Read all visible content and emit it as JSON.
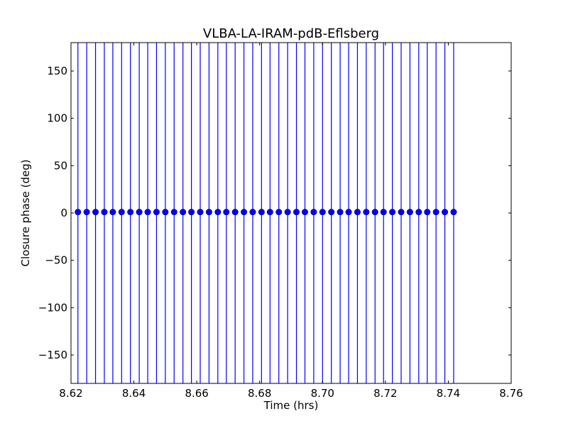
{
  "chart_data": {
    "type": "scatter",
    "title": "VLBA-LA-IRAM-pdB-Eflsberg",
    "xlabel": "Time (hrs)",
    "ylabel": "Closure phase (deg)",
    "xlim": [
      8.62,
      8.76
    ],
    "ylim": [
      -180,
      180
    ],
    "xticks": [
      8.62,
      8.64,
      8.66,
      8.68,
      8.7,
      8.72,
      8.74,
      8.76
    ],
    "xtick_labels": [
      "8.62",
      "8.64",
      "8.66",
      "8.68",
      "8.70",
      "8.72",
      "8.74",
      "8.76"
    ],
    "yticks": [
      -150,
      -100,
      -50,
      0,
      50,
      100,
      150
    ],
    "ytick_labels": [
      "−150",
      "−100",
      "−50",
      "0",
      "50",
      "100",
      "150"
    ],
    "grid": false,
    "series": [
      {
        "color": "#0000ff",
        "marker": "circle",
        "error_bars": "vertical, spanning full axis range",
        "x": [
          8.6222,
          8.625,
          8.6278,
          8.6306,
          8.6333,
          8.6361,
          8.6389,
          8.6417,
          8.6444,
          8.6472,
          8.65,
          8.6528,
          8.6556,
          8.6583,
          8.6611,
          8.6639,
          8.6667,
          8.6694,
          8.6722,
          8.675,
          8.6778,
          8.6806,
          8.6833,
          8.6861,
          8.6889,
          8.6917,
          8.6944,
          8.6972,
          8.7,
          8.7028,
          8.7056,
          8.7083,
          8.7111,
          8.7139,
          8.7167,
          8.7194,
          8.7222,
          8.725,
          8.7278,
          8.7306,
          8.7333,
          8.7361,
          8.7389,
          8.7417
        ],
        "y": [
          1,
          1,
          1,
          1,
          1,
          1,
          1,
          1,
          1,
          1,
          1,
          1,
          1,
          1,
          1,
          1,
          1,
          1,
          1,
          1,
          1,
          1,
          1,
          1,
          1,
          1,
          1,
          1,
          1,
          1,
          1,
          1,
          1,
          1,
          1,
          1,
          1,
          1,
          1,
          1,
          1,
          1,
          1,
          1
        ],
        "err_low": [
          -180,
          -180,
          -180,
          -180,
          -180,
          -180,
          -180,
          -180,
          -180,
          -180,
          -180,
          -180,
          -180,
          -180,
          -180,
          -180,
          -180,
          -180,
          -180,
          -180,
          -180,
          -180,
          -180,
          -180,
          -180,
          -180,
          -180,
          -180,
          -180,
          -180,
          -180,
          -180,
          -180,
          -180,
          -180,
          -180,
          -180,
          -180,
          -180,
          -180,
          -180,
          -180,
          -180,
          -180
        ],
        "err_high": [
          180,
          180,
          180,
          180,
          180,
          180,
          180,
          180,
          180,
          180,
          180,
          180,
          180,
          180,
          180,
          180,
          180,
          180,
          180,
          180,
          180,
          180,
          180,
          180,
          180,
          180,
          180,
          180,
          180,
          180,
          180,
          180,
          180,
          180,
          180,
          180,
          180,
          180,
          180,
          180,
          180,
          180,
          180,
          180
        ]
      }
    ]
  }
}
